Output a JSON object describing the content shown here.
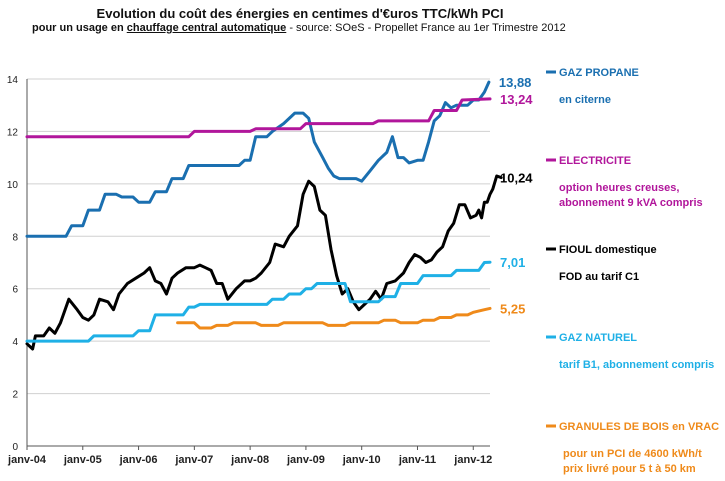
{
  "chart_data": {
    "type": "line",
    "title": "Evolution du coût des énergies en centimes d'€uros TTC/kWh PCI",
    "subtitle_prefix": "pour un usage en ",
    "subtitle_underlined": "chauffage central automatique",
    "subtitle_source": " - source: SOeS - Propellet France au 1er Trimestre 2012",
    "xlabel": "",
    "ylabel": "",
    "ylim": [
      0,
      14
    ],
    "yticks": [
      0,
      2,
      4,
      6,
      8,
      10,
      12,
      14
    ],
    "xlim": [
      2004.0,
      2012.3
    ],
    "xtick_labels": [
      "janv-04",
      "janv-05",
      "janv-06",
      "janv-07",
      "janv-08",
      "janv-09",
      "janv-10",
      "janv-11",
      "janv-12"
    ],
    "grid": "horizontal",
    "legend_placement": "right",
    "series": [
      {
        "name": "GAZ PROPANE",
        "description": [
          "en citerne"
        ],
        "color": "#1a6fb0",
        "end_label": "13,88",
        "points": [
          [
            2004.0,
            8.0
          ],
          [
            2004.7,
            8.0
          ],
          [
            2004.8,
            8.4
          ],
          [
            2005.0,
            8.4
          ],
          [
            2005.1,
            9.0
          ],
          [
            2005.3,
            9.0
          ],
          [
            2005.4,
            9.6
          ],
          [
            2005.6,
            9.6
          ],
          [
            2005.7,
            9.5
          ],
          [
            2005.9,
            9.5
          ],
          [
            2006.0,
            9.3
          ],
          [
            2006.2,
            9.3
          ],
          [
            2006.3,
            9.7
          ],
          [
            2006.5,
            9.7
          ],
          [
            2006.6,
            10.2
          ],
          [
            2006.8,
            10.2
          ],
          [
            2006.9,
            10.7
          ],
          [
            2007.8,
            10.7
          ],
          [
            2007.9,
            10.9
          ],
          [
            2008.0,
            10.9
          ],
          [
            2008.1,
            11.8
          ],
          [
            2008.3,
            11.8
          ],
          [
            2008.4,
            12.0
          ],
          [
            2008.6,
            12.3
          ],
          [
            2008.8,
            12.7
          ],
          [
            2008.95,
            12.7
          ],
          [
            2009.05,
            12.5
          ],
          [
            2009.15,
            11.6
          ],
          [
            2009.3,
            11.0
          ],
          [
            2009.4,
            10.6
          ],
          [
            2009.5,
            10.3
          ],
          [
            2009.6,
            10.2
          ],
          [
            2009.9,
            10.2
          ],
          [
            2010.0,
            10.1
          ],
          [
            2010.15,
            10.5
          ],
          [
            2010.3,
            10.9
          ],
          [
            2010.45,
            11.2
          ],
          [
            2010.55,
            11.8
          ],
          [
            2010.65,
            11.0
          ],
          [
            2010.75,
            11.0
          ],
          [
            2010.85,
            10.8
          ],
          [
            2011.0,
            10.9
          ],
          [
            2011.1,
            10.9
          ],
          [
            2011.2,
            11.6
          ],
          [
            2011.3,
            12.4
          ],
          [
            2011.4,
            12.6
          ],
          [
            2011.5,
            13.1
          ],
          [
            2011.6,
            12.9
          ],
          [
            2011.7,
            13.0
          ],
          [
            2011.9,
            13.0
          ],
          [
            2012.0,
            13.2
          ],
          [
            2012.1,
            13.2
          ],
          [
            2012.2,
            13.5
          ],
          [
            2012.28,
            13.88
          ]
        ]
      },
      {
        "name": "ELECTRICITE",
        "description": [
          "option heures creuses,",
          "abonnement 9 kVA compris"
        ],
        "color": "#b1169b",
        "end_label": "13,24",
        "points": [
          [
            2004.0,
            11.8
          ],
          [
            2006.9,
            11.8
          ],
          [
            2007.0,
            12.0
          ],
          [
            2008.0,
            12.0
          ],
          [
            2008.1,
            12.1
          ],
          [
            2008.9,
            12.1
          ],
          [
            2009.0,
            12.3
          ],
          [
            2010.2,
            12.3
          ],
          [
            2010.3,
            12.4
          ],
          [
            2011.2,
            12.4
          ],
          [
            2011.3,
            12.8
          ],
          [
            2011.7,
            12.8
          ],
          [
            2011.8,
            13.2
          ],
          [
            2012.3,
            13.24
          ]
        ]
      },
      {
        "name": "FIOUL domestique",
        "description": [
          "FOD au tarif C1"
        ],
        "color": "#000000",
        "end_label": "10,24",
        "points": [
          [
            2004.0,
            3.9
          ],
          [
            2004.1,
            3.7
          ],
          [
            2004.15,
            4.2
          ],
          [
            2004.3,
            4.2
          ],
          [
            2004.4,
            4.5
          ],
          [
            2004.5,
            4.3
          ],
          [
            2004.6,
            4.7
          ],
          [
            2004.75,
            5.6
          ],
          [
            2004.9,
            5.2
          ],
          [
            2005.0,
            4.9
          ],
          [
            2005.1,
            4.8
          ],
          [
            2005.2,
            5.0
          ],
          [
            2005.3,
            5.6
          ],
          [
            2005.45,
            5.5
          ],
          [
            2005.55,
            5.2
          ],
          [
            2005.65,
            5.8
          ],
          [
            2005.8,
            6.2
          ],
          [
            2005.95,
            6.4
          ],
          [
            2006.1,
            6.6
          ],
          [
            2006.2,
            6.8
          ],
          [
            2006.3,
            6.3
          ],
          [
            2006.4,
            6.2
          ],
          [
            2006.5,
            5.8
          ],
          [
            2006.6,
            6.4
          ],
          [
            2006.7,
            6.6
          ],
          [
            2006.85,
            6.8
          ],
          [
            2007.0,
            6.8
          ],
          [
            2007.1,
            6.9
          ],
          [
            2007.2,
            6.8
          ],
          [
            2007.3,
            6.7
          ],
          [
            2007.4,
            6.2
          ],
          [
            2007.5,
            6.2
          ],
          [
            2007.6,
            5.6
          ],
          [
            2007.75,
            6.0
          ],
          [
            2007.9,
            6.3
          ],
          [
            2008.0,
            6.3
          ],
          [
            2008.1,
            6.4
          ],
          [
            2008.2,
            6.6
          ],
          [
            2008.35,
            7.0
          ],
          [
            2008.45,
            7.7
          ],
          [
            2008.6,
            7.6
          ],
          [
            2008.7,
            8.0
          ],
          [
            2008.85,
            8.4
          ],
          [
            2008.95,
            9.6
          ],
          [
            2009.05,
            10.1
          ],
          [
            2009.15,
            9.9
          ],
          [
            2009.25,
            9.0
          ],
          [
            2009.35,
            8.8
          ],
          [
            2009.45,
            7.5
          ],
          [
            2009.55,
            6.5
          ],
          [
            2009.65,
            5.8
          ],
          [
            2009.75,
            6.0
          ],
          [
            2009.85,
            5.5
          ],
          [
            2009.95,
            5.2
          ],
          [
            2010.05,
            5.4
          ],
          [
            2010.15,
            5.6
          ],
          [
            2010.25,
            5.9
          ],
          [
            2010.35,
            5.6
          ],
          [
            2010.45,
            6.2
          ],
          [
            2010.6,
            6.3
          ],
          [
            2010.75,
            6.6
          ],
          [
            2010.85,
            7.0
          ],
          [
            2010.95,
            7.3
          ],
          [
            2011.05,
            7.2
          ],
          [
            2011.15,
            7.0
          ],
          [
            2011.25,
            7.1
          ],
          [
            2011.35,
            7.4
          ],
          [
            2011.45,
            7.6
          ],
          [
            2011.55,
            8.2
          ],
          [
            2011.65,
            8.5
          ],
          [
            2011.75,
            9.2
          ],
          [
            2011.85,
            9.2
          ],
          [
            2011.95,
            8.7
          ],
          [
            2012.05,
            8.8
          ],
          [
            2012.1,
            9.0
          ],
          [
            2012.15,
            8.7
          ],
          [
            2012.2,
            9.3
          ],
          [
            2012.25,
            9.3
          ],
          [
            2012.3,
            9.6
          ],
          [
            2012.35,
            9.8
          ],
          [
            2012.42,
            10.3
          ],
          [
            2012.5,
            10.24
          ]
        ]
      },
      {
        "name": "GAZ NATUREL",
        "description": [
          "tarif B1, abonnement compris"
        ],
        "color": "#1fb0e6",
        "end_label": "7,01",
        "points": [
          [
            2004.0,
            4.0
          ],
          [
            2005.1,
            4.0
          ],
          [
            2005.2,
            4.2
          ],
          [
            2005.9,
            4.2
          ],
          [
            2006.0,
            4.4
          ],
          [
            2006.2,
            4.4
          ],
          [
            2006.3,
            5.0
          ],
          [
            2006.8,
            5.0
          ],
          [
            2006.9,
            5.3
          ],
          [
            2007.0,
            5.3
          ],
          [
            2007.1,
            5.4
          ],
          [
            2008.3,
            5.4
          ],
          [
            2008.4,
            5.6
          ],
          [
            2008.6,
            5.6
          ],
          [
            2008.7,
            5.8
          ],
          [
            2008.9,
            5.8
          ],
          [
            2009.0,
            6.0
          ],
          [
            2009.1,
            6.0
          ],
          [
            2009.2,
            6.2
          ],
          [
            2009.7,
            6.2
          ],
          [
            2009.8,
            5.5
          ],
          [
            2010.3,
            5.5
          ],
          [
            2010.4,
            5.7
          ],
          [
            2010.6,
            5.7
          ],
          [
            2010.7,
            6.2
          ],
          [
            2011.0,
            6.2
          ],
          [
            2011.1,
            6.5
          ],
          [
            2011.6,
            6.5
          ],
          [
            2011.7,
            6.7
          ],
          [
            2012.1,
            6.7
          ],
          [
            2012.2,
            7.0
          ],
          [
            2012.3,
            7.01
          ]
        ]
      },
      {
        "name": "GRANULES DE BOIS en VRAC",
        "description": [
          "pour un PCI de 4600 kWh/t",
          "prix livré pour 5 t à 50 km"
        ],
        "color": "#ef8a1a",
        "end_label": "5,25",
        "points": [
          [
            2006.7,
            4.7
          ],
          [
            2007.0,
            4.7
          ],
          [
            2007.1,
            4.5
          ],
          [
            2007.3,
            4.5
          ],
          [
            2007.4,
            4.6
          ],
          [
            2007.6,
            4.6
          ],
          [
            2007.7,
            4.7
          ],
          [
            2008.1,
            4.7
          ],
          [
            2008.2,
            4.6
          ],
          [
            2008.5,
            4.6
          ],
          [
            2008.6,
            4.7
          ],
          [
            2009.3,
            4.7
          ],
          [
            2009.4,
            4.6
          ],
          [
            2009.7,
            4.6
          ],
          [
            2009.8,
            4.7
          ],
          [
            2010.3,
            4.7
          ],
          [
            2010.4,
            4.8
          ],
          [
            2010.6,
            4.8
          ],
          [
            2010.7,
            4.7
          ],
          [
            2011.0,
            4.7
          ],
          [
            2011.1,
            4.8
          ],
          [
            2011.3,
            4.8
          ],
          [
            2011.4,
            4.9
          ],
          [
            2011.6,
            4.9
          ],
          [
            2011.7,
            5.0
          ],
          [
            2011.9,
            5.0
          ],
          [
            2012.0,
            5.1
          ],
          [
            2012.2,
            5.2
          ],
          [
            2012.3,
            5.25
          ]
        ]
      }
    ]
  }
}
